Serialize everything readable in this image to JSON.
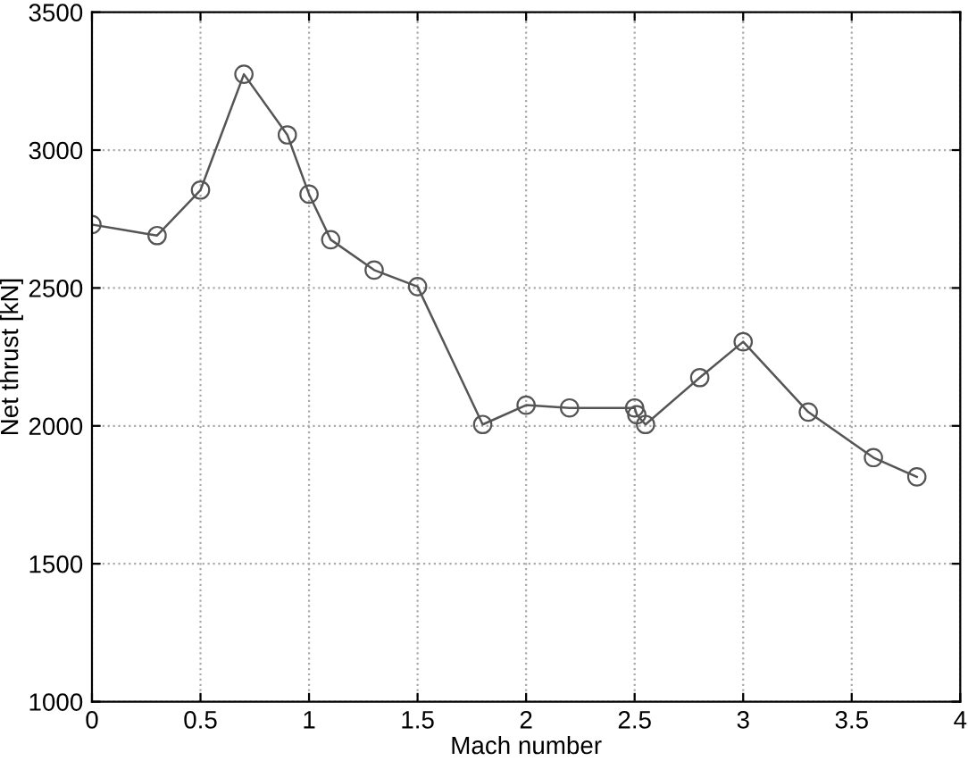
{
  "chart_data": {
    "type": "line",
    "xlabel": "Mach number",
    "ylabel": "Net thrust [kN]",
    "x": [
      0,
      0.3,
      0.5,
      0.7,
      0.9,
      1.0,
      1.1,
      1.3,
      1.5,
      1.8,
      2.0,
      2.2,
      2.5,
      2.51,
      2.55,
      2.8,
      3.0,
      3.3,
      3.6,
      3.8
    ],
    "series": [
      {
        "color": "#555555",
        "values": [
          2730,
          2690,
          2855,
          3275,
          3055,
          2840,
          2675,
          2565,
          2505,
          2005,
          2075,
          2065,
          2065,
          2040,
          2005,
          2175,
          2305,
          2050,
          1885,
          1815
        ]
      }
    ],
    "xlim": [
      0,
      4
    ],
    "ylim": [
      1000,
      3500
    ],
    "xticks": [
      0,
      0.5,
      1,
      1.5,
      2,
      2.5,
      3,
      3.5,
      4
    ],
    "yticks": [
      1000,
      1500,
      2000,
      2500,
      3000,
      3500
    ],
    "grid": true,
    "marker": "circle",
    "line_style": "solid",
    "legend": false
  }
}
